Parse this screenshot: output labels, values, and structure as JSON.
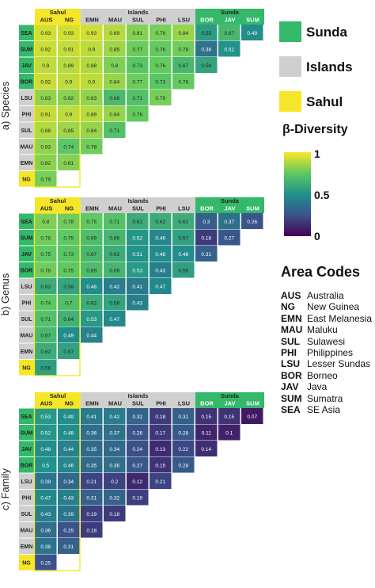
{
  "area_order": [
    "SEA",
    "SUM",
    "JAV",
    "BOR",
    "LSU",
    "PHI",
    "SUL",
    "MAU",
    "EMN",
    "NG"
  ],
  "columns": [
    "AUS",
    "NG",
    "EMN",
    "MAU",
    "SUL",
    "PHI",
    "LSU",
    "BOR",
    "JAV",
    "SUM"
  ],
  "groups": [
    {
      "name": "Sahul",
      "color": "#f5e62a",
      "columns": [
        "AUS",
        "NG"
      ]
    },
    {
      "name": "Islands",
      "color": "#cfcfcf",
      "columns": [
        "EMN",
        "MAU",
        "SUL",
        "PHI",
        "LSU"
      ]
    },
    {
      "name": "Sunda",
      "color": "#34b86a",
      "columns": [
        "BOR",
        "JAV",
        "SUM"
      ]
    }
  ],
  "legend": {
    "keys": [
      {
        "label": "Sunda",
        "color": "#34b86a"
      },
      {
        "label": "Islands",
        "color": "#cfcfcf"
      },
      {
        "label": "Sahul",
        "color": "#f5e62a"
      }
    ],
    "colorbar_title": "β-Diversity",
    "colorbar_ticks": [
      "1",
      "0.5",
      "0"
    ]
  },
  "area_codes_title": "Area Codes",
  "area_codes": [
    {
      "code": "AUS",
      "name": "Australia"
    },
    {
      "code": "NG",
      "name": "New Guinea"
    },
    {
      "code": "EMN",
      "name": "East Melanesia"
    },
    {
      "code": "MAU",
      "name": "Maluku"
    },
    {
      "code": "SUL",
      "name": "Sulawesi"
    },
    {
      "code": "PHI",
      "name": "Philippines"
    },
    {
      "code": "LSU",
      "name": "Lesser Sundas"
    },
    {
      "code": "BOR",
      "name": "Borneo"
    },
    {
      "code": "JAV",
      "name": "Java"
    },
    {
      "code": "SUM",
      "name": "Sumatra"
    },
    {
      "code": "SEA",
      "name": "SE Asia"
    }
  ],
  "chart_data": [
    {
      "type": "heatmap",
      "title": "a)  Species",
      "colormap": "viridis",
      "color_range": [
        0,
        1
      ],
      "rows": [
        "SEA",
        "SUM",
        "JAV",
        "BOR",
        "LSU",
        "PHI",
        "SUL",
        "MAU",
        "EMN",
        "NG"
      ],
      "columns": [
        "AUS",
        "NG",
        "EMN",
        "MAU",
        "SUL",
        "PHI",
        "LSU",
        "BOR",
        "JAV",
        "SUM"
      ],
      "values": [
        [
          0.93,
          0.93,
          0.93,
          0.89,
          0.81,
          0.79,
          0.84,
          0.55,
          0.67,
          0.49
        ],
        [
          0.92,
          0.91,
          0.9,
          0.85,
          0.77,
          0.76,
          0.78,
          0.38,
          0.51
        ],
        [
          0.9,
          0.89,
          0.88,
          0.8,
          0.73,
          0.76,
          0.67,
          0.58
        ],
        [
          0.92,
          0.9,
          0.9,
          0.84,
          0.77,
          0.73,
          0.76
        ],
        [
          0.83,
          0.82,
          0.83,
          0.68,
          0.71,
          0.79
        ],
        [
          0.91,
          0.9,
          0.89,
          0.84,
          0.76
        ],
        [
          0.88,
          0.85,
          0.84,
          0.71
        ],
        [
          0.83,
          0.74,
          0.78
        ],
        [
          0.82,
          0.81
        ],
        [
          0.79
        ]
      ]
    },
    {
      "type": "heatmap",
      "title": "b)  Genus",
      "colormap": "viridis",
      "color_range": [
        0,
        1
      ],
      "rows": [
        "SEA",
        "SUM",
        "JAV",
        "BOR",
        "LSU",
        "PHI",
        "SUL",
        "MAU",
        "EMN",
        "NG"
      ],
      "columns": [
        "AUS",
        "NG",
        "EMN",
        "MAU",
        "SUL",
        "PHI",
        "LSU",
        "BOR",
        "JAV",
        "SUM"
      ],
      "values": [
        [
          0.8,
          0.78,
          0.75,
          0.71,
          0.61,
          0.62,
          0.62,
          0.3,
          0.37,
          0.26
        ],
        [
          0.78,
          0.75,
          0.69,
          0.66,
          0.52,
          0.46,
          0.57,
          0.18,
          0.27
        ],
        [
          0.75,
          0.73,
          0.67,
          0.62,
          0.51,
          0.48,
          0.48,
          0.31
        ],
        [
          0.78,
          0.75,
          0.69,
          0.66,
          0.53,
          0.43,
          0.56
        ],
        [
          0.62,
          0.58,
          0.48,
          0.42,
          0.41,
          0.47
        ],
        [
          0.74,
          0.7,
          0.62,
          0.58,
          0.43
        ],
        [
          0.71,
          0.64,
          0.53,
          0.47
        ],
        [
          0.67,
          0.49,
          0.44
        ],
        [
          0.62,
          0.57
        ],
        [
          0.56
        ]
      ]
    },
    {
      "type": "heatmap",
      "title": "c)  Family",
      "colormap": "viridis",
      "color_range": [
        0,
        1
      ],
      "rows": [
        "SEA",
        "SUM",
        "JAV",
        "BOR",
        "LSU",
        "PHI",
        "SUL",
        "MAU",
        "EMN",
        "NG"
      ],
      "columns": [
        "AUS",
        "NG",
        "EMN",
        "MAU",
        "SUL",
        "PHI",
        "LSU",
        "BOR",
        "JAV",
        "SUM"
      ],
      "values": [
        [
          0.53,
          0.49,
          0.41,
          0.42,
          0.32,
          0.18,
          0.31,
          0.15,
          0.15,
          0.07
        ],
        [
          0.52,
          0.48,
          0.36,
          0.37,
          0.26,
          0.17,
          0.28,
          0.11,
          0.1
        ],
        [
          0.48,
          0.44,
          0.35,
          0.34,
          0.24,
          0.13,
          0.22,
          0.14
        ],
        [
          0.5,
          0.46,
          0.35,
          0.36,
          0.27,
          0.15,
          0.28
        ],
        [
          0.39,
          0.34,
          0.21,
          0.2,
          0.12,
          0.21
        ],
        [
          0.47,
          0.43,
          0.31,
          0.32,
          0.19
        ],
        [
          0.43,
          0.39,
          0.19,
          0.18
        ],
        [
          0.36,
          0.25,
          0.18
        ],
        [
          0.38,
          0.31
        ],
        [
          0.25
        ]
      ]
    }
  ]
}
